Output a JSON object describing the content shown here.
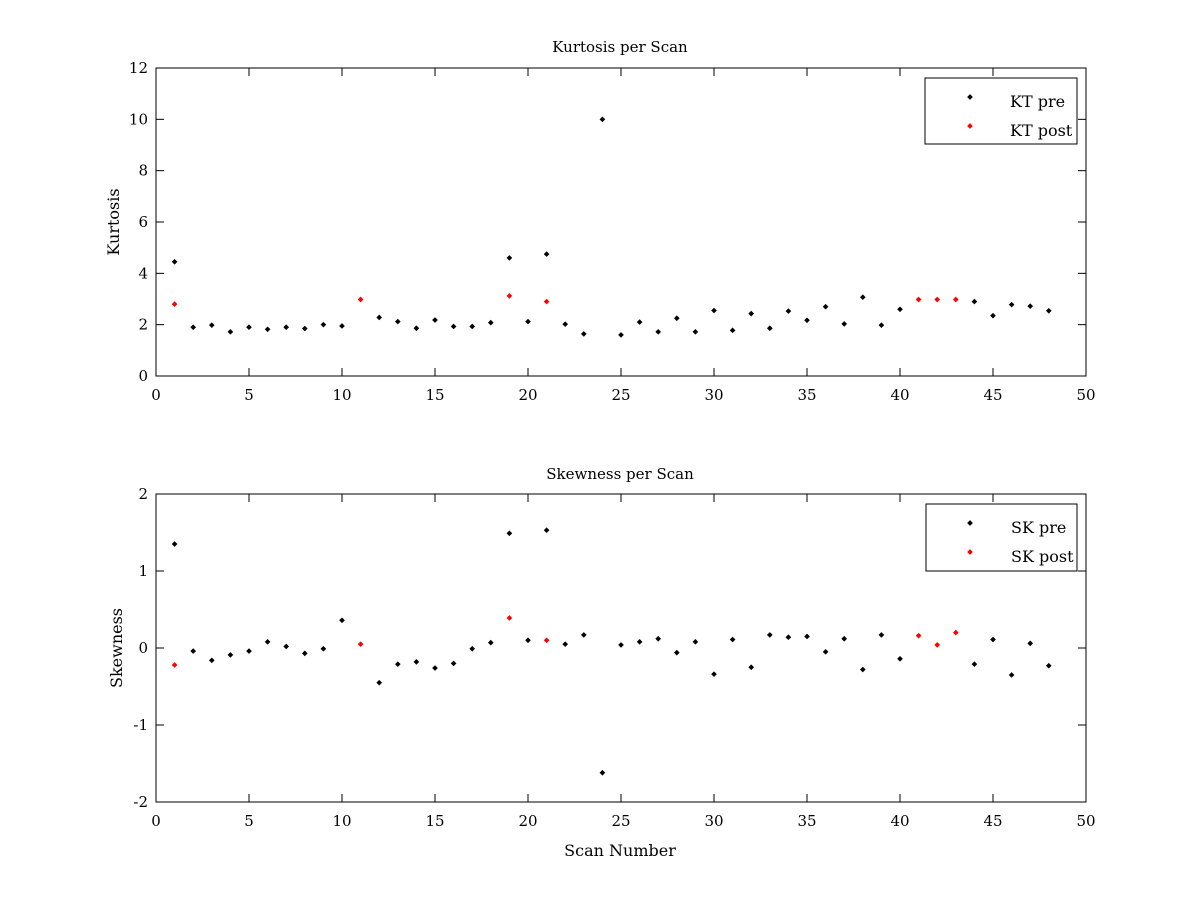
{
  "chart_data": [
    {
      "type": "scatter",
      "title": "Kurtosis per Scan",
      "xlabel": "",
      "ylabel": "Kurtosis",
      "xlim": [
        0,
        50
      ],
      "ylim": [
        0,
        12
      ],
      "xticks": [
        0,
        5,
        10,
        15,
        20,
        25,
        30,
        35,
        40,
        45,
        50
      ],
      "yticks": [
        0,
        2,
        4,
        6,
        8,
        10,
        12
      ],
      "xtick_labels": [
        "0",
        "5",
        "10",
        "15",
        "20",
        "25",
        "30",
        "35",
        "40",
        "45",
        "50"
      ],
      "ytick_labels": [
        "0",
        "2",
        "4",
        "6",
        "8",
        "10",
        "12"
      ],
      "grid": false,
      "legend": "top-right",
      "series": [
        {
          "name": "KT pre",
          "color": "#000000",
          "x": [
            1,
            2,
            3,
            4,
            5,
            6,
            7,
            8,
            9,
            10,
            12,
            13,
            14,
            15,
            16,
            17,
            18,
            19,
            20,
            21,
            22,
            23,
            24,
            25,
            26,
            27,
            28,
            29,
            30,
            31,
            32,
            33,
            34,
            35,
            36,
            37,
            38,
            39,
            40,
            44,
            45,
            46,
            47,
            48
          ],
          "y": [
            4.45,
            1.9,
            1.98,
            1.72,
            1.9,
            1.82,
            1.9,
            1.85,
            2.0,
            1.95,
            2.28,
            2.12,
            1.86,
            2.18,
            1.93,
            1.93,
            2.08,
            4.6,
            2.12,
            4.75,
            2.02,
            1.64,
            10.0,
            1.6,
            2.1,
            1.72,
            2.25,
            1.72,
            2.55,
            1.78,
            2.43,
            1.86,
            2.53,
            2.17,
            2.7,
            2.03,
            3.07,
            1.98,
            2.6,
            2.9,
            2.35,
            2.78,
            2.72,
            2.54
          ]
        },
        {
          "name": "KT post",
          "color": "#ff0000",
          "x": [
            1,
            11,
            19,
            21,
            41,
            42,
            43
          ],
          "y": [
            2.8,
            2.98,
            3.12,
            2.9,
            2.98,
            2.98,
            2.98
          ]
        }
      ]
    },
    {
      "type": "scatter",
      "title": "Skewness per Scan",
      "xlabel": "Scan Number",
      "ylabel": "Skewness",
      "xlim": [
        0,
        50
      ],
      "ylim": [
        -2,
        2
      ],
      "xticks": [
        0,
        5,
        10,
        15,
        20,
        25,
        30,
        35,
        40,
        45,
        50
      ],
      "yticks": [
        -2,
        -1,
        0,
        1,
        2
      ],
      "xtick_labels": [
        "0",
        "5",
        "10",
        "15",
        "20",
        "25",
        "30",
        "35",
        "40",
        "45",
        "50"
      ],
      "ytick_labels": [
        "-2",
        "-1",
        "0",
        "1",
        "2"
      ],
      "grid": false,
      "legend": "top-right",
      "series": [
        {
          "name": "SK pre",
          "color": "#000000",
          "x": [
            1,
            2,
            3,
            4,
            5,
            6,
            7,
            8,
            9,
            10,
            12,
            13,
            14,
            15,
            16,
            17,
            18,
            19,
            20,
            21,
            22,
            23,
            24,
            25,
            26,
            27,
            28,
            29,
            30,
            31,
            32,
            33,
            34,
            35,
            36,
            37,
            38,
            39,
            40,
            44,
            45,
            46,
            47,
            48
          ],
          "y": [
            1.35,
            -0.04,
            -0.16,
            -0.09,
            -0.04,
            0.08,
            0.02,
            -0.07,
            -0.01,
            0.36,
            -0.45,
            -0.21,
            -0.18,
            -0.26,
            -0.2,
            -0.01,
            0.07,
            1.49,
            0.1,
            1.53,
            0.05,
            0.17,
            -1.62,
            0.04,
            0.08,
            0.12,
            -0.06,
            0.08,
            -0.34,
            0.11,
            -0.25,
            0.17,
            0.14,
            0.15,
            -0.05,
            0.12,
            -0.28,
            0.17,
            -0.14,
            -0.21,
            0.11,
            -0.35,
            0.06,
            -0.23
          ]
        },
        {
          "name": "SK post",
          "color": "#ff0000",
          "x": [
            1,
            11,
            19,
            21,
            41,
            42,
            43
          ],
          "y": [
            -0.22,
            0.05,
            0.39,
            0.1,
            0.16,
            0.04,
            0.2
          ]
        }
      ]
    }
  ]
}
